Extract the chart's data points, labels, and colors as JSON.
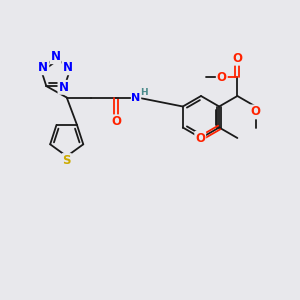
{
  "bg_color": "#e8e8ec",
  "bond_color": "#1a1a1a",
  "atom_colors": {
    "N": "#0000ff",
    "O": "#ff2200",
    "S": "#ccaa00",
    "H": "#4a8a8a",
    "C": "#1a1a1a"
  },
  "lw": 1.3,
  "fs": 8.5,
  "xlim": [
    0,
    10
  ],
  "ylim": [
    0,
    10
  ]
}
